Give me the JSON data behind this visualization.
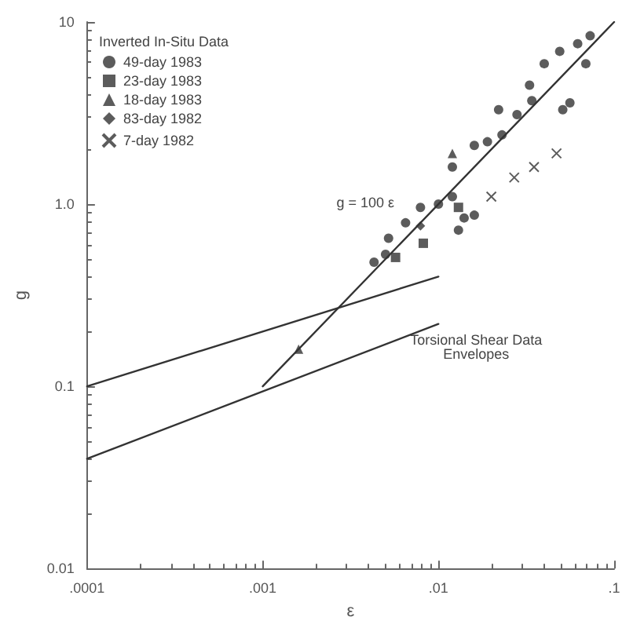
{
  "chart_data": {
    "type": "scatter",
    "xlabel": "ε",
    "ylabel": "g",
    "legend_title": "Inverted In-Situ Data",
    "legend": "top left",
    "log": "xy",
    "grid": false,
    "xlim": [
      0.0001,
      0.1
    ],
    "xticks": [
      {
        "value": 0.0001,
        "label": ".0001"
      },
      {
        "value": 0.001,
        "label": ".001"
      },
      {
        "value": 0.01,
        "label": ".01"
      },
      {
        "value": 0.1,
        "label": ".1"
      }
    ],
    "ylim": [
      0.01,
      10
    ],
    "yticks": [
      {
        "value": 0.01,
        "label": "0.01"
      },
      {
        "value": 0.1,
        "label": "0.1"
      },
      {
        "value": 1,
        "label": "1.0"
      },
      {
        "value": 10,
        "label": "10"
      }
    ],
    "series": [
      {
        "name": "49-day 1983",
        "color": "#333333",
        "marker": "circle",
        "x": [
          0.073,
          0.062,
          0.049,
          0.069,
          0.056,
          0.051,
          0.04,
          0.033,
          0.034,
          0.028,
          0.022,
          0.023,
          0.019,
          0.016,
          0.012,
          0.012,
          0.01,
          0.0079,
          0.0065,
          0.0052,
          0.005,
          0.0043,
          0.016,
          0.014,
          0.013
        ],
        "values": [
          8.4,
          7.6,
          6.9,
          5.9,
          3.6,
          3.3,
          5.9,
          4.5,
          3.7,
          3.1,
          3.3,
          2.4,
          2.2,
          2.1,
          1.6,
          1.1,
          1.0,
          0.96,
          0.79,
          0.65,
          0.53,
          0.48,
          0.87,
          0.84,
          0.72
        ]
      },
      {
        "name": "23-day 1983",
        "color": "#333333",
        "marker": "square",
        "x": [
          0.013,
          0.0057,
          0.0082
        ],
        "values": [
          0.96,
          0.51,
          0.61
        ]
      },
      {
        "name": "18-day 1983",
        "color": "#333333",
        "marker": "triangle",
        "x": [
          0.012,
          0.0016
        ],
        "values": [
          1.9,
          0.16
        ]
      },
      {
        "name": "83-day 1982",
        "color": "#333333",
        "marker": "diamond",
        "x": [
          0.0079
        ],
        "values": [
          0.76
        ]
      },
      {
        "name": "7-day 1982",
        "color": "#333333",
        "marker": "cross",
        "x": [
          0.047,
          0.035,
          0.027,
          0.02
        ],
        "values": [
          1.9,
          1.6,
          1.4,
          1.1
        ]
      },
      {
        "type": "line",
        "color": "#333333",
        "line_style": "solid",
        "x": [
          0.001,
          0.1
        ],
        "values": [
          0.1,
          10
        ]
      },
      {
        "type": "line",
        "color": "#333333",
        "line_style": "solid",
        "x": [
          0.0001,
          0.01
        ],
        "values": [
          0.1,
          0.4
        ]
      },
      {
        "type": "line",
        "color": "#333333",
        "line_style": "solid",
        "x": [
          0.0001,
          0.01
        ],
        "values": [
          0.04,
          0.22
        ]
      }
    ],
    "annotations": [
      {
        "text": "g = 100 ε",
        "x": 0.009,
        "y": 0.9
      },
      "Torsional Shear Data\nEnvelopes"
    ]
  }
}
